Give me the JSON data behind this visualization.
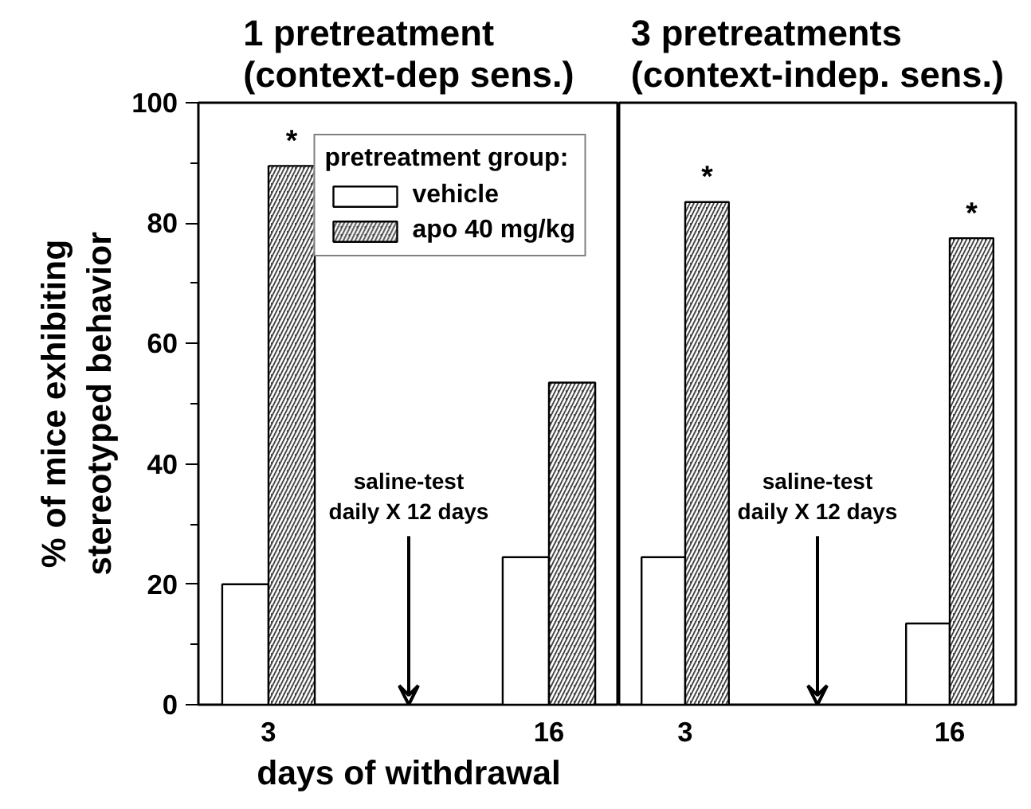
{
  "chart_data": [
    {
      "type": "bar",
      "title": "1 pretreatment\n(context-dep sens.)",
      "xlabel": "days of withdrawal",
      "ylabel": "% of mice exhibiting\nstereotyped behavior",
      "legend_title": "pretreatment group:",
      "legend": "top right",
      "categories": [
        "3",
        "16"
      ],
      "series": [
        {
          "name": "vehicle",
          "color": "#ffffff",
          "values": [
            20,
            24.5
          ]
        },
        {
          "name": "apo 40 mg/kg",
          "color": "#444444",
          "values": [
            89.5,
            53.5
          ]
        }
      ],
      "ylim": [
        0,
        100
      ],
      "yticks": [
        0,
        20,
        40,
        60,
        80,
        100
      ],
      "annotations": [
        {
          "text": "*",
          "x": "3",
          "y": 89.5
        },
        "saline-test\ndaily X 12 days"
      ]
    },
    {
      "type": "bar",
      "title": "3 pretreatments\n(context-indep. sens.)",
      "tick_labels": "x",
      "categories": [
        "3",
        "16"
      ],
      "series": [
        {
          "color": "#ffffff",
          "values": [
            24.5,
            13.5
          ]
        },
        {
          "color": "#444444",
          "values": [
            83.5,
            77.5
          ]
        }
      ],
      "ylim": [
        0,
        100
      ],
      "yticks": [
        0,
        20,
        40,
        60,
        80,
        100
      ],
      "annotations": [
        {
          "text": "*",
          "x": "3",
          "y": 83.5
        },
        {
          "text": "*",
          "x": "16",
          "y": 77.5
        },
        "saline-test\ndaily X 12 days"
      ]
    }
  ]
}
